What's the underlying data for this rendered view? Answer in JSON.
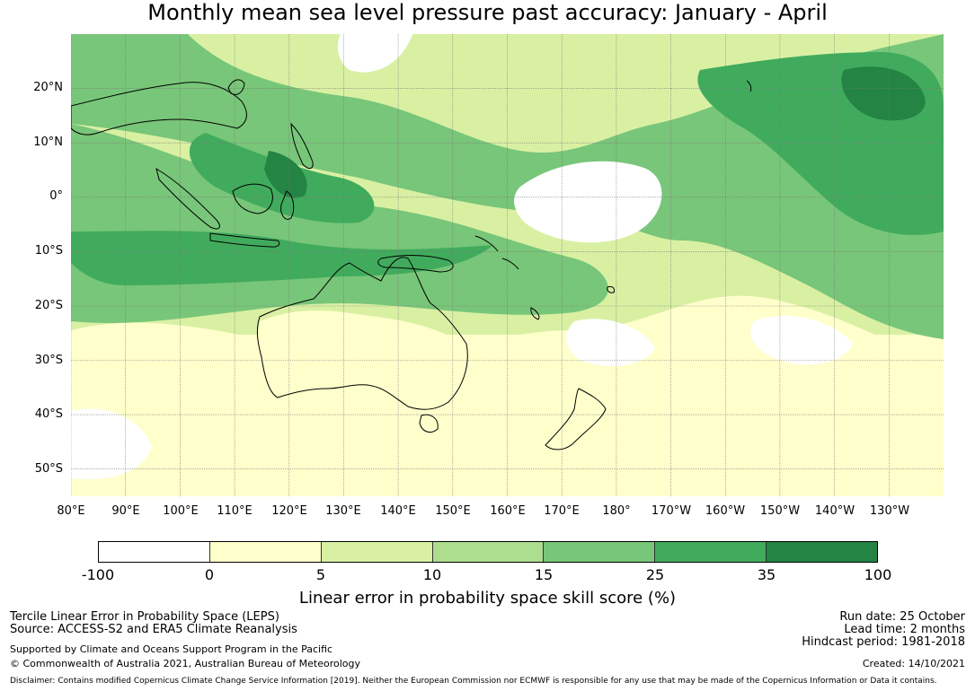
{
  "title": "Monthly mean sea level pressure past accuracy: January - April",
  "map": {
    "lat_labels": [
      "20°N",
      "10°N",
      "0°",
      "10°S",
      "20°S",
      "30°S",
      "40°S",
      "50°S"
    ],
    "lon_labels": [
      "80°E",
      "90°E",
      "100°E",
      "110°E",
      "120°E",
      "130°E",
      "140°E",
      "150°E",
      "160°E",
      "170°E",
      "180°",
      "170°W",
      "160°W",
      "150°W",
      "140°W",
      "130°W"
    ],
    "lat_range": [
      -55,
      30
    ],
    "lon_range": [
      80,
      240
    ],
    "colors": {
      "c0": "#ffffff",
      "c1": "#ffffcc",
      "c2": "#d9f0a3",
      "c3": "#addd8e",
      "c4": "#78c679",
      "c5": "#41ab5d",
      "c6": "#238443"
    }
  },
  "colorbar": {
    "ticks": [
      "-100",
      "0",
      "5",
      "10",
      "15",
      "25",
      "35",
      "100"
    ],
    "colors": [
      "#ffffff",
      "#ffffcc",
      "#d9f0a3",
      "#addd8e",
      "#78c679",
      "#41ab5d",
      "#238443"
    ],
    "label": "Linear error in probability space skill score (%)"
  },
  "footer": {
    "line1": "Tercile Linear Error in Probability Space (LEPS)",
    "line2": "Source: ACCESS-S2 and ERA5 Climate Reanalysis",
    "line3": "Supported by Climate and Oceans Support Program in the Pacific",
    "line4": "© Commonwealth of Australia 2021, Australian Bureau of Meteorology",
    "run_date": "Run date: 25 October",
    "lead_time": "Lead time: 2 months",
    "hindcast": "Hindcast period: 1981-2018",
    "created": "Created: 14/10/2021",
    "disclaimer": "Disclaimer: Contains modified Copernicus Climate Change Service Information [2019]. Neither the European Commission nor ECMWF is responsible for any use that may be made of the Copernicus Information or Data it contains."
  }
}
